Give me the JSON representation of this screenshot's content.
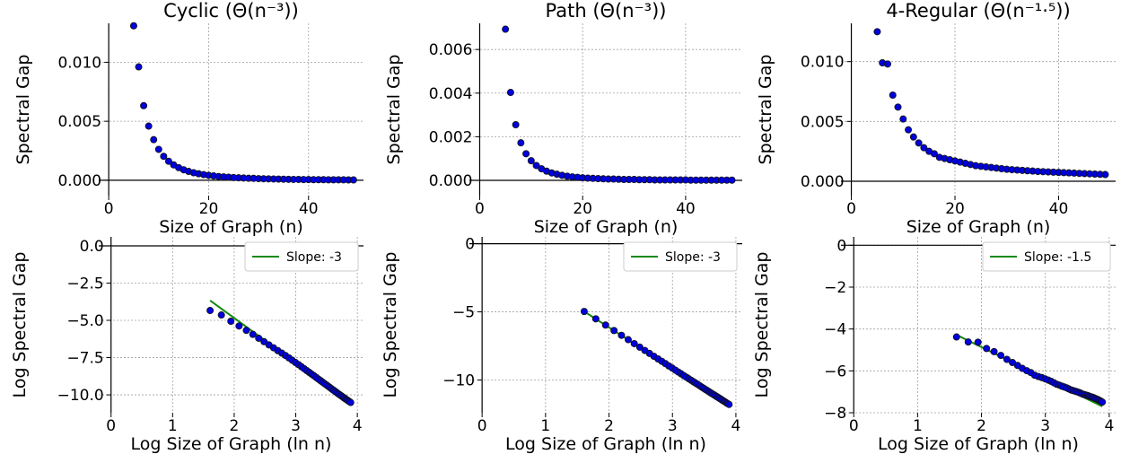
{
  "chart_data": [
    {
      "type": "scatter",
      "title": "Cyclic (Θ(n⁻³))",
      "xlabel": "Size of Graph (n)",
      "ylabel": "Spectral Gap",
      "xlim": [
        -2,
        51
      ],
      "ylim": [
        -0.0013,
        0.0133
      ],
      "xticks": [
        0,
        20,
        40
      ],
      "yticks": [
        0.0,
        0.005,
        0.01
      ],
      "ytick_labels": [
        "0.000",
        "0.005",
        "0.010"
      ],
      "grid": true,
      "series": [
        {
          "x": [
            5,
            6,
            7,
            8,
            9,
            10,
            11,
            12,
            13,
            14,
            15,
            16,
            17,
            18,
            19,
            20,
            21,
            22,
            23,
            24,
            25,
            26,
            27,
            28,
            29,
            30,
            31,
            32,
            33,
            34,
            35,
            36,
            37,
            38,
            39,
            40,
            41,
            42,
            43,
            44,
            45,
            46,
            47,
            48,
            49
          ],
          "values": [
            0.01309,
            0.00961,
            0.00632,
            0.00459,
            0.00344,
            0.00262,
            0.00203,
            0.00161,
            0.0013,
            0.00107,
            0.00089,
            0.00075,
            0.00064,
            0.00055,
            0.00048,
            0.00042,
            0.00037,
            0.00032,
            0.00029,
            0.00026,
            0.00023,
            0.00021,
            0.00019,
            0.00017,
            0.00016,
            0.00014,
            0.00013,
            0.00012,
            0.00011,
            0.0001,
            9e-05,
            8e-05,
            7e-05,
            7e-05,
            6e-05,
            6e-05,
            5e-05,
            5e-05,
            5e-05,
            4e-05,
            4e-05,
            4e-05,
            4e-05,
            3e-05,
            3e-05
          ]
        }
      ]
    },
    {
      "type": "scatter",
      "title": "Path (Θ(n⁻³))",
      "xlabel": "Size of Graph (n)",
      "ylabel": "Spectral Gap",
      "xlim": [
        -2,
        51
      ],
      "ylim": [
        -0.0007,
        0.0072
      ],
      "xticks": [
        0,
        20,
        40
      ],
      "yticks": [
        0.0,
        0.002,
        0.004,
        0.006
      ],
      "ytick_labels": [
        "0.000",
        "0.002",
        "0.004",
        "0.006"
      ],
      "grid": true,
      "series": [
        {
          "x": [
            5,
            6,
            7,
            8,
            9,
            10,
            11,
            12,
            13,
            14,
            15,
            16,
            17,
            18,
            19,
            20,
            21,
            22,
            23,
            24,
            25,
            26,
            27,
            28,
            29,
            30,
            31,
            32,
            33,
            34,
            35,
            36,
            37,
            38,
            39,
            40,
            41,
            42,
            43,
            44,
            45,
            46,
            47,
            48,
            49
          ],
          "values": [
            0.00693,
            0.00403,
            0.00255,
            0.00172,
            0.00122,
            0.0009,
            0.00068,
            0.00053,
            0.00042,
            0.00034,
            0.00028,
            0.00023,
            0.00019,
            0.00016,
            0.00014,
            0.00012,
            0.0001,
            9e-05,
            8e-05,
            7e-05,
            6e-05,
            6e-05,
            5e-05,
            4e-05,
            4e-05,
            4e-05,
            3e-05,
            3e-05,
            3e-05,
            2e-05,
            2e-05,
            2e-05,
            2e-05,
            2e-05,
            2e-05,
            2e-05,
            1e-05,
            1e-05,
            1e-05,
            1e-05,
            1e-05,
            1e-05,
            1e-05,
            1e-05,
            1e-05
          ]
        }
      ]
    },
    {
      "type": "scatter",
      "title": "4-Regular (Θ(n⁻¹·⁵))",
      "xlabel": "Size of Graph (n)",
      "ylabel": "Spectral Gap",
      "xlim": [
        -2,
        51
      ],
      "ylim": [
        -0.0012,
        0.0132
      ],
      "xticks": [
        0,
        20,
        40
      ],
      "yticks": [
        0.0,
        0.005,
        0.01
      ],
      "ytick_labels": [
        "0.000",
        "0.005",
        "0.010"
      ],
      "grid": true,
      "series": [
        {
          "x": [
            5,
            6,
            7,
            8,
            9,
            10,
            11,
            12,
            13,
            14,
            15,
            16,
            17,
            18,
            19,
            20,
            21,
            22,
            23,
            24,
            25,
            26,
            27,
            28,
            29,
            30,
            31,
            32,
            33,
            34,
            35,
            36,
            37,
            38,
            39,
            40,
            41,
            42,
            43,
            44,
            45,
            46,
            47,
            48,
            49
          ],
          "values": [
            0.0125,
            0.0099,
            0.0098,
            0.0072,
            0.0062,
            0.0052,
            0.0043,
            0.0037,
            0.0032,
            0.0028,
            0.0025,
            0.0023,
            0.002,
            0.0019,
            0.0018,
            0.0017,
            0.0016,
            0.0015,
            0.0014,
            0.0013,
            0.00125,
            0.0012,
            0.00115,
            0.0011,
            0.00105,
            0.001,
            0.00097,
            0.00094,
            0.00091,
            0.00088,
            0.00085,
            0.00082,
            0.0008,
            0.00078,
            0.00076,
            0.00074,
            0.00072,
            0.0007,
            0.00068,
            0.00066,
            0.00064,
            0.00062,
            0.0006,
            0.00058,
            0.00056
          ]
        }
      ]
    },
    {
      "type": "scatter",
      "xlabel": "Log Size of Graph (ln n)",
      "ylabel": "Log Spectral Gap",
      "xlim": [
        -0.2,
        4.1
      ],
      "ylim": [
        -11.2,
        0.6
      ],
      "xticks": [
        0,
        1,
        2,
        3,
        4
      ],
      "yticks": [
        0.0,
        -2.5,
        -5.0,
        -7.5,
        -10.0
      ],
      "ytick_labels": [
        "0.0",
        "−2.5",
        "−5.0",
        "−7.5",
        "−10.0"
      ],
      "grid": true,
      "legend": "top-right",
      "series": [
        {
          "x": [
            1.609,
            1.792,
            1.946,
            2.079,
            2.197,
            2.303,
            2.398,
            2.485,
            2.565,
            2.639,
            2.708,
            2.773,
            2.833,
            2.89,
            2.944,
            2.996,
            3.045,
            3.091,
            3.135,
            3.178,
            3.219,
            3.258,
            3.296,
            3.332,
            3.367,
            3.401,
            3.434,
            3.466,
            3.497,
            3.526,
            3.555,
            3.584,
            3.611,
            3.638,
            3.664,
            3.689,
            3.714,
            3.738,
            3.761,
            3.784,
            3.807,
            3.829,
            3.85,
            3.871,
            3.892
          ],
          "values": [
            -4.34,
            -4.64,
            -5.06,
            -5.38,
            -5.67,
            -5.94,
            -6.2,
            -6.43,
            -6.65,
            -6.84,
            -7.03,
            -7.2,
            -7.36,
            -7.52,
            -7.68,
            -7.83,
            -7.97,
            -8.11,
            -8.24,
            -8.37,
            -8.49,
            -8.61,
            -8.72,
            -8.83,
            -8.94,
            -9.04,
            -9.14,
            -9.24,
            -9.33,
            -9.42,
            -9.51,
            -9.6,
            -9.68,
            -9.76,
            -9.84,
            -9.92,
            -9.99,
            -10.06,
            -10.13,
            -10.2,
            -10.27,
            -10.33,
            -10.39,
            -10.45,
            -10.51
          ]
        },
        {
          "name": "Slope: -3",
          "x": [
            1.609,
            3.892
          ],
          "values": [
            -3.67,
            -10.52
          ]
        }
      ]
    },
    {
      "type": "scatter",
      "xlabel": "Log Size of Graph (ln n)",
      "ylabel": "Log Spectral Gap",
      "xlim": [
        -0.2,
        4.1
      ],
      "ylim": [
        -12.4,
        0.5
      ],
      "xticks": [
        0,
        1,
        2,
        3,
        4
      ],
      "yticks": [
        0,
        -5,
        -10
      ],
      "ytick_labels": [
        "0",
        "−5",
        "−10"
      ],
      "grid": true,
      "legend": "top-right",
      "series": [
        {
          "x": [
            1.609,
            1.792,
            1.946,
            2.079,
            2.197,
            2.303,
            2.398,
            2.485,
            2.565,
            2.639,
            2.708,
            2.773,
            2.833,
            2.89,
            2.944,
            2.996,
            3.045,
            3.091,
            3.135,
            3.178,
            3.219,
            3.258,
            3.296,
            3.332,
            3.367,
            3.401,
            3.434,
            3.466,
            3.497,
            3.526,
            3.555,
            3.584,
            3.611,
            3.638,
            3.664,
            3.689,
            3.714,
            3.738,
            3.761,
            3.784,
            3.807,
            3.829,
            3.85,
            3.871,
            3.892
          ],
          "values": [
            -4.97,
            -5.51,
            -5.97,
            -6.37,
            -6.72,
            -7.04,
            -7.33,
            -7.59,
            -7.83,
            -8.05,
            -8.26,
            -8.45,
            -8.63,
            -8.8,
            -8.97,
            -9.12,
            -9.27,
            -9.41,
            -9.54,
            -9.67,
            -9.79,
            -9.91,
            -10.02,
            -10.13,
            -10.23,
            -10.33,
            -10.43,
            -10.53,
            -10.62,
            -10.71,
            -10.79,
            -10.88,
            -10.96,
            -11.04,
            -11.11,
            -11.19,
            -11.26,
            -11.33,
            -11.4,
            -11.47,
            -11.54,
            -11.6,
            -11.67,
            -11.73,
            -11.79
          ]
        },
        {
          "name": "Slope: -3",
          "x": [
            1.609,
            3.892
          ],
          "values": [
            -4.97,
            -11.8
          ]
        }
      ]
    },
    {
      "type": "scatter",
      "xlabel": "Log Size of Graph (ln n)",
      "ylabel": "Log Spectral Gap",
      "xlim": [
        -0.2,
        4.1
      ],
      "ylim": [
        -8.0,
        0.4
      ],
      "xticks": [
        0,
        1,
        2,
        3,
        4
      ],
      "yticks": [
        0,
        -2,
        -4,
        -6,
        -8
      ],
      "ytick_labels": [
        "0",
        "−2",
        "−4",
        "−6",
        "−8"
      ],
      "grid": true,
      "legend": "top-right",
      "series": [
        {
          "x": [
            1.609,
            1.792,
            1.946,
            2.079,
            2.197,
            2.303,
            2.398,
            2.485,
            2.565,
            2.639,
            2.708,
            2.773,
            2.833,
            2.89,
            2.944,
            2.996,
            3.045,
            3.091,
            3.135,
            3.178,
            3.219,
            3.258,
            3.296,
            3.332,
            3.367,
            3.401,
            3.434,
            3.466,
            3.497,
            3.526,
            3.555,
            3.584,
            3.611,
            3.638,
            3.664,
            3.689,
            3.714,
            3.738,
            3.761,
            3.784,
            3.807,
            3.829,
            3.85,
            3.871,
            3.892
          ],
          "values": [
            -4.38,
            -4.62,
            -4.63,
            -4.93,
            -5.08,
            -5.26,
            -5.45,
            -5.6,
            -5.74,
            -5.88,
            -5.99,
            -6.08,
            -6.21,
            -6.27,
            -6.32,
            -6.38,
            -6.44,
            -6.5,
            -6.57,
            -6.64,
            -6.68,
            -6.73,
            -6.77,
            -6.81,
            -6.86,
            -6.91,
            -6.94,
            -6.97,
            -7.0,
            -7.03,
            -7.07,
            -7.11,
            -7.13,
            -7.16,
            -7.18,
            -7.21,
            -7.24,
            -7.26,
            -7.29,
            -7.32,
            -7.35,
            -7.38,
            -7.42,
            -7.45,
            -7.49
          ]
        },
        {
          "name": "Slope: -1.5",
          "x": [
            1.609,
            3.892
          ],
          "values": [
            -4.28,
            -7.7
          ]
        }
      ]
    }
  ]
}
